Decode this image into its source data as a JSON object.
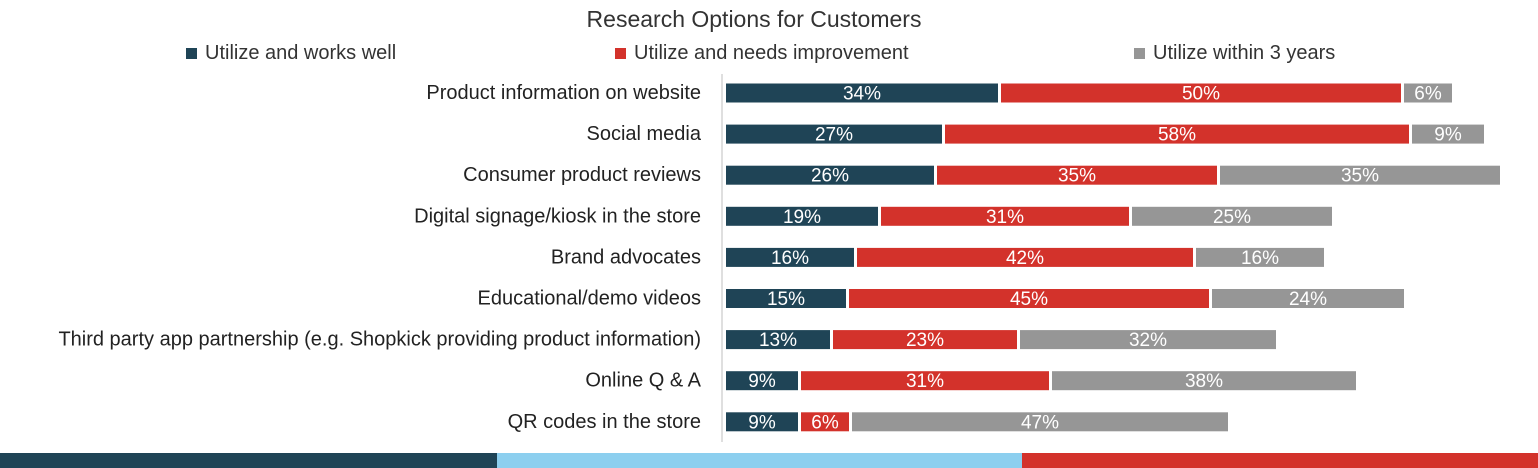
{
  "chart_data": {
    "type": "bar",
    "orientation": "horizontal",
    "stacked": true,
    "title": "Research Options for Customers",
    "categories": [
      "Product information on website",
      "Social media",
      "Consumer product reviews",
      "Digital signage/kiosk in the store",
      "Brand advocates",
      "Educational/demo videos",
      "Third party app partnership (e.g. Shopkick providing product information)",
      "Online Q & A",
      "QR codes in the store"
    ],
    "series": [
      {
        "name": "Utilize and works well",
        "color": "#1f4456",
        "values": [
          34,
          27,
          26,
          19,
          16,
          15,
          13,
          9,
          9
        ]
      },
      {
        "name": "Utilize and needs improvement",
        "color": "#d3322b",
        "values": [
          50,
          58,
          35,
          31,
          42,
          45,
          23,
          31,
          6
        ]
      },
      {
        "name": "Utilize within 3 years",
        "color": "#969696",
        "values": [
          6,
          9,
          35,
          25,
          16,
          24,
          32,
          38,
          47
        ]
      }
    ],
    "value_suffix": "%",
    "legend_position": "top",
    "grid": false
  },
  "footer_stripe_colors": [
    "#1f4456",
    "#8ccfef",
    "#d3322b"
  ]
}
